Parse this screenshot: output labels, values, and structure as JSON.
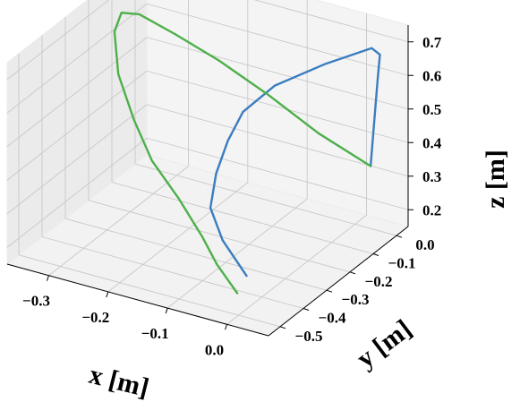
{
  "chart_data": {
    "type": "line3d",
    "xlabel": "x [m]",
    "ylabel": "y [m]",
    "zlabel": "z [m]",
    "xlim": [
      -0.37,
      0.07
    ],
    "ylim": [
      -0.55,
      0.05
    ],
    "zlim": [
      0.15,
      0.75
    ],
    "x_ticks": [
      "−0.3",
      "−0.2",
      "−0.1",
      "0.0"
    ],
    "y_ticks": [
      "−0.5",
      "−0.4",
      "−0.3",
      "−0.2",
      "−0.1",
      "0.0"
    ],
    "z_ticks": [
      "0.2",
      "0.3",
      "0.4",
      "0.5",
      "0.6",
      "0.7"
    ],
    "grid": true,
    "series": [
      {
        "color": "#3b7dbf",
        "points": [
          [
            -0.01,
            -0.44,
            0.23
          ],
          [
            -0.07,
            -0.39,
            0.28
          ],
          [
            -0.11,
            -0.34,
            0.33
          ],
          [
            -0.12,
            -0.29,
            0.4
          ],
          [
            -0.12,
            -0.24,
            0.47
          ],
          [
            -0.11,
            -0.2,
            0.54
          ],
          [
            -0.08,
            -0.14,
            0.6
          ],
          [
            -0.02,
            -0.08,
            0.66
          ],
          [
            0.04,
            -0.03,
            0.71
          ],
          [
            0.05,
            -0.02,
            0.69
          ],
          [
            0.05,
            -0.03,
            0.62
          ],
          [
            0.05,
            -0.04,
            0.54
          ],
          [
            0.05,
            -0.05,
            0.46
          ],
          [
            0.05,
            -0.06,
            0.38
          ]
        ]
      },
      {
        "color": "#4daf4a",
        "points": [
          [
            0.05,
            -0.06,
            0.38
          ],
          [
            -0.03,
            -0.08,
            0.45
          ],
          [
            -0.11,
            -0.09,
            0.53
          ],
          [
            -0.19,
            -0.1,
            0.6
          ],
          [
            -0.26,
            -0.11,
            0.65
          ],
          [
            -0.32,
            -0.11,
            0.68
          ],
          [
            -0.35,
            -0.11,
            0.67
          ],
          [
            -0.35,
            -0.14,
            0.63
          ],
          [
            -0.32,
            -0.2,
            0.55
          ],
          [
            -0.27,
            -0.26,
            0.47
          ],
          [
            -0.22,
            -0.31,
            0.4
          ],
          [
            -0.16,
            -0.35,
            0.34
          ],
          [
            -0.1,
            -0.4,
            0.28
          ],
          [
            -0.06,
            -0.44,
            0.24
          ],
          [
            -0.01,
            -0.48,
            0.2
          ]
        ]
      }
    ]
  }
}
